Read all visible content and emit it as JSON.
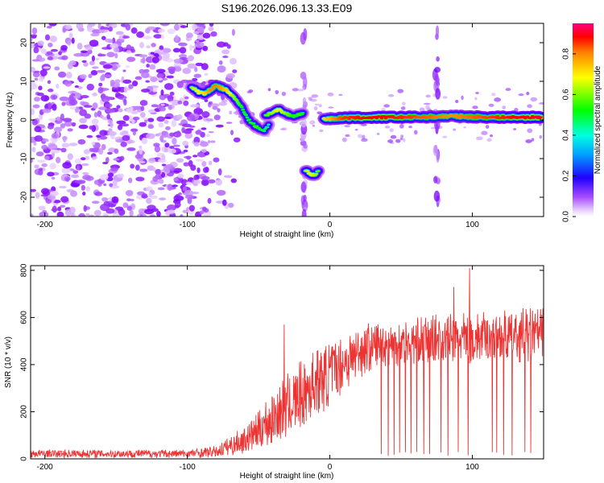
{
  "figure": {
    "title": "S196.2026.096.13.33.E09"
  },
  "chart_data": [
    {
      "type": "heatmap",
      "title": "S196.2026.096.13.33.E09",
      "xlabel": "Height of straight line (km)",
      "ylabel": "Frequency (Hz)",
      "xlim": [
        -210,
        150
      ],
      "ylim": [
        -25,
        25
      ],
      "xticks": [
        -200,
        -100,
        0,
        100
      ],
      "yticks": [
        -20,
        -10,
        0,
        10,
        20
      ],
      "grid": false,
      "colorbar": {
        "label": "Normalized spectral amplitude",
        "range": [
          0.0,
          0.95
        ],
        "ticks": [
          0.0,
          0.2,
          0.4,
          0.6,
          0.8
        ],
        "colormap": [
          "#ffffff",
          "#d9b3ff",
          "#8000ff",
          "#0000ff",
          "#00e5ff",
          "#00ff00",
          "#ffff00",
          "#ff8000",
          "#ff0000",
          "#ff0080"
        ]
      },
      "noise_region": {
        "x_range": [
          -210,
          -85
        ],
        "y_range": [
          -25,
          25
        ],
        "amplitude": 0.1
      },
      "vertical_streaks": [
        {
          "x": -18,
          "y_range": [
            -25,
            25
          ],
          "amplitude": 0.07
        },
        {
          "x": 75,
          "y_range": [
            -25,
            25
          ],
          "amplitude": 0.08
        }
      ],
      "tracks": [
        {
          "name": "descending chirp",
          "x": [
            -97,
            -92,
            -88,
            -84,
            -80,
            -76,
            -72,
            -68,
            -64,
            -61,
            -58,
            -55,
            -52,
            -49,
            -46,
            -43
          ],
          "y": [
            8.5,
            7.2,
            6.8,
            7.8,
            8.8,
            8.2,
            7.6,
            6.0,
            4.5,
            2.8,
            0.5,
            -0.8,
            -1.6,
            -2.3,
            -2.8,
            -1.2
          ],
          "amplitude": [
            0.5,
            0.55,
            0.6,
            0.7,
            0.72,
            0.68,
            0.6,
            0.5,
            0.45,
            0.42,
            0.4,
            0.42,
            0.45,
            0.4,
            0.38,
            0.35
          ]
        },
        {
          "name": "mid segment",
          "x": [
            -45,
            -40,
            -36,
            -32,
            -28,
            -24,
            -21,
            -19
          ],
          "y": [
            1.2,
            2.0,
            2.6,
            1.8,
            1.2,
            1.0,
            1.6,
            1.8
          ],
          "amplitude": [
            0.45,
            0.5,
            0.55,
            0.5,
            0.45,
            0.4,
            0.45,
            0.4
          ]
        },
        {
          "name": "low-frequency burst",
          "x": [
            -17,
            -14,
            -11,
            -8
          ],
          "y": [
            -13.0,
            -14.0,
            -14.3,
            -13.2
          ],
          "amplitude": [
            0.5,
            0.55,
            0.52,
            0.45
          ]
        },
        {
          "name": "steady line",
          "x": [
            -4,
            10,
            25,
            40,
            55,
            70,
            85,
            100,
            115,
            130,
            148
          ],
          "y": [
            0.2,
            0.5,
            0.6,
            0.7,
            0.7,
            0.8,
            1.0,
            0.8,
            0.7,
            0.7,
            0.7
          ],
          "amplitude": [
            0.6,
            0.8,
            0.85,
            0.85,
            0.8,
            0.75,
            0.7,
            0.75,
            0.8,
            0.85,
            0.88
          ]
        }
      ]
    },
    {
      "type": "line",
      "title": "",
      "xlabel": "Height of straight line (km)",
      "ylabel": "SNR (10 * v/v)",
      "xlim": [
        -210,
        150
      ],
      "ylim": [
        0,
        820
      ],
      "xticks": [
        -200,
        -100,
        0,
        100
      ],
      "yticks": [
        0,
        200,
        400,
        600,
        800
      ],
      "grid": false,
      "series": [
        {
          "name": "SNR",
          "color": "#ee3333",
          "envelope": {
            "x": [
              -210,
              -100,
              -80,
              -60,
              -45,
              -30,
              -15,
              0,
              15,
              25,
              40,
              60,
              80,
              100,
              120,
              150
            ],
            "mean": [
              22,
              22,
              30,
              80,
              150,
              220,
              300,
              360,
              430,
              470,
              490,
              500,
              510,
              510,
              520,
              530
            ],
            "spread": [
              18,
              18,
              25,
              60,
              110,
              140,
              150,
              140,
              120,
              110,
              100,
              100,
              110,
              110,
              110,
              120
            ]
          },
          "spikes": [
            {
              "x": -32,
              "y": 570
            },
            {
              "x": 98,
              "y": 810
            },
            {
              "x": 87,
              "y": 730
            }
          ],
          "dropouts_x": [
            36,
            41,
            45,
            49,
            53,
            57,
            61,
            66,
            70,
            78,
            83,
            90,
            97,
            114,
            117,
            122,
            128,
            137,
            141
          ]
        }
      ]
    }
  ]
}
